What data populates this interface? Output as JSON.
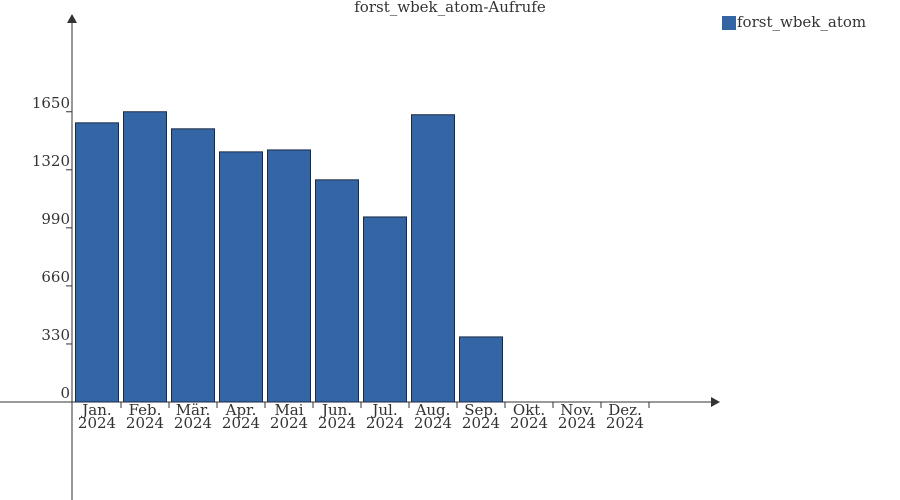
{
  "chart_data": {
    "type": "bar",
    "title": "forst_wbek_atom-Aufrufe",
    "categories": [
      [
        "Jan.",
        "2024"
      ],
      [
        "Feb.",
        "2024"
      ],
      [
        "Mär.",
        "2024"
      ],
      [
        "Apr.",
        "2024"
      ],
      [
        "Mai",
        "2024"
      ],
      [
        "Jun.",
        "2024"
      ],
      [
        "Jul.",
        "2024"
      ],
      [
        "Aug.",
        "2024"
      ],
      [
        "Sep.",
        "2024"
      ],
      [
        "Okt.",
        "2024"
      ],
      [
        "Nov.",
        "2024"
      ],
      [
        "Dez.",
        "2024"
      ]
    ],
    "series": [
      {
        "name": "forst_wbek_atom",
        "color": "#3465a4",
        "values": [
          1587,
          1650,
          1553,
          1422,
          1433,
          1263,
          1052,
          1633,
          370,
          0,
          0,
          0
        ]
      }
    ],
    "ylim": [
      0,
      2200
    ],
    "yticks": [
      0,
      330,
      660,
      990,
      1320,
      1650
    ],
    "legend": "top-right"
  }
}
